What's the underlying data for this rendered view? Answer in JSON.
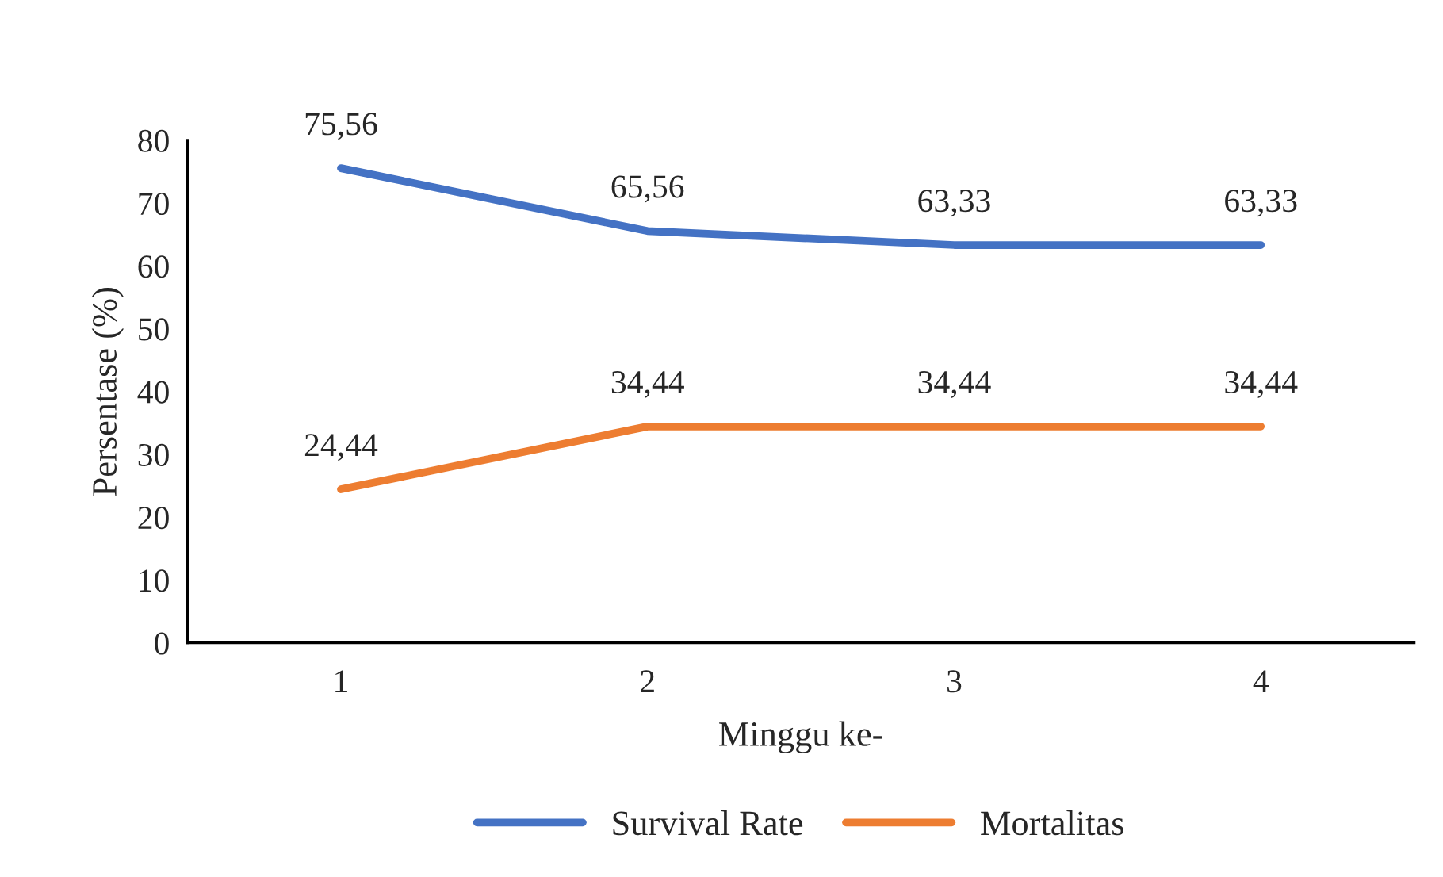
{
  "chart_data": {
    "type": "line",
    "xlabel": "Minggu ke-",
    "ylabel": "Persentase (%)",
    "categories": [
      "1",
      "2",
      "3",
      "4"
    ],
    "series": [
      {
        "name": "Survival Rate",
        "color": "#4472c4",
        "values": [
          75.56,
          65.56,
          63.33,
          63.33
        ],
        "value_labels": [
          "75,56",
          "65,56",
          "63,33",
          "63,33"
        ]
      },
      {
        "name": "Mortalitas",
        "color": "#ed7d31",
        "values": [
          24.44,
          34.44,
          34.44,
          34.44
        ],
        "value_labels": [
          "24,44",
          "34,44",
          "34,44",
          "34,44"
        ]
      }
    ],
    "ylim": [
      0,
      80
    ],
    "yticks": [
      0,
      10,
      20,
      30,
      40,
      50,
      60,
      70,
      80
    ],
    "grid": false,
    "legend": "bottom",
    "marker": "none",
    "line_style": "solid"
  }
}
